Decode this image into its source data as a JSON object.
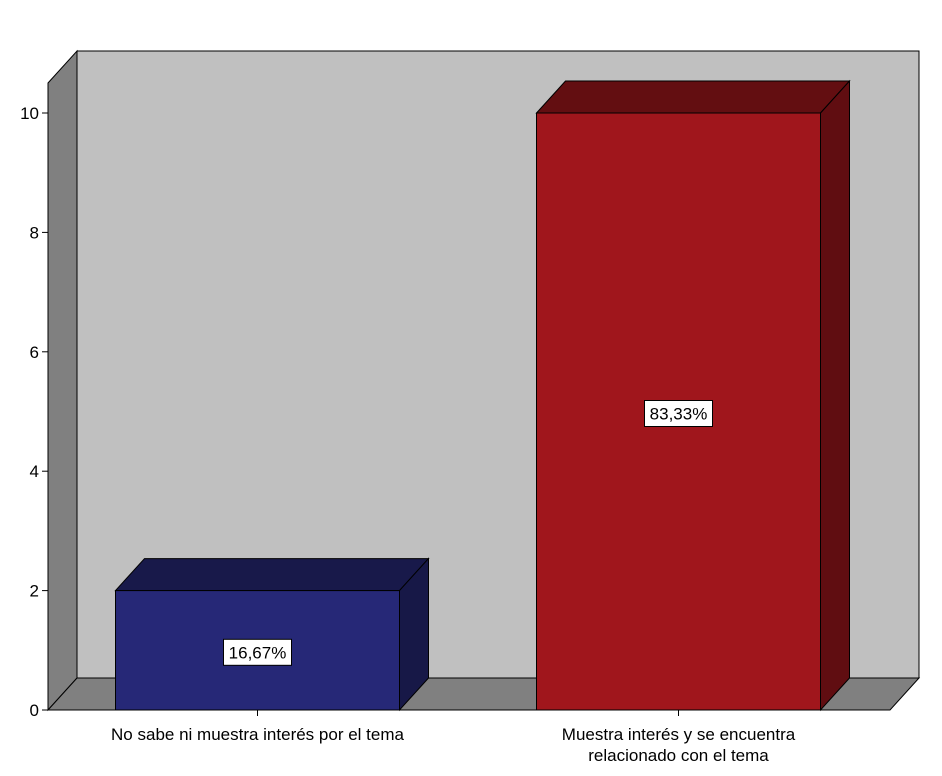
{
  "chart_data": {
    "type": "bar",
    "style": "3d",
    "categories": [
      "No sabe ni muestra interés por el tema",
      "Muestra interés y se encuentra relacionado con el tema"
    ],
    "category_label_lines": [
      [
        "No sabe ni muestra interés por el tema"
      ],
      [
        "Muestra interés y se encuentra",
        "relacionado con el tema"
      ]
    ],
    "values": [
      2,
      10
    ],
    "data_labels": [
      "16,67%",
      "83,33%"
    ],
    "colors": [
      "#262877",
      "#A0161C"
    ],
    "title": "",
    "xlabel": "",
    "ylabel": "",
    "ylim": [
      0,
      10
    ],
    "yticks": [
      0,
      2,
      4,
      6,
      8,
      10
    ],
    "grid": false,
    "legend": "none",
    "plot_background": "#C0C0C0"
  }
}
